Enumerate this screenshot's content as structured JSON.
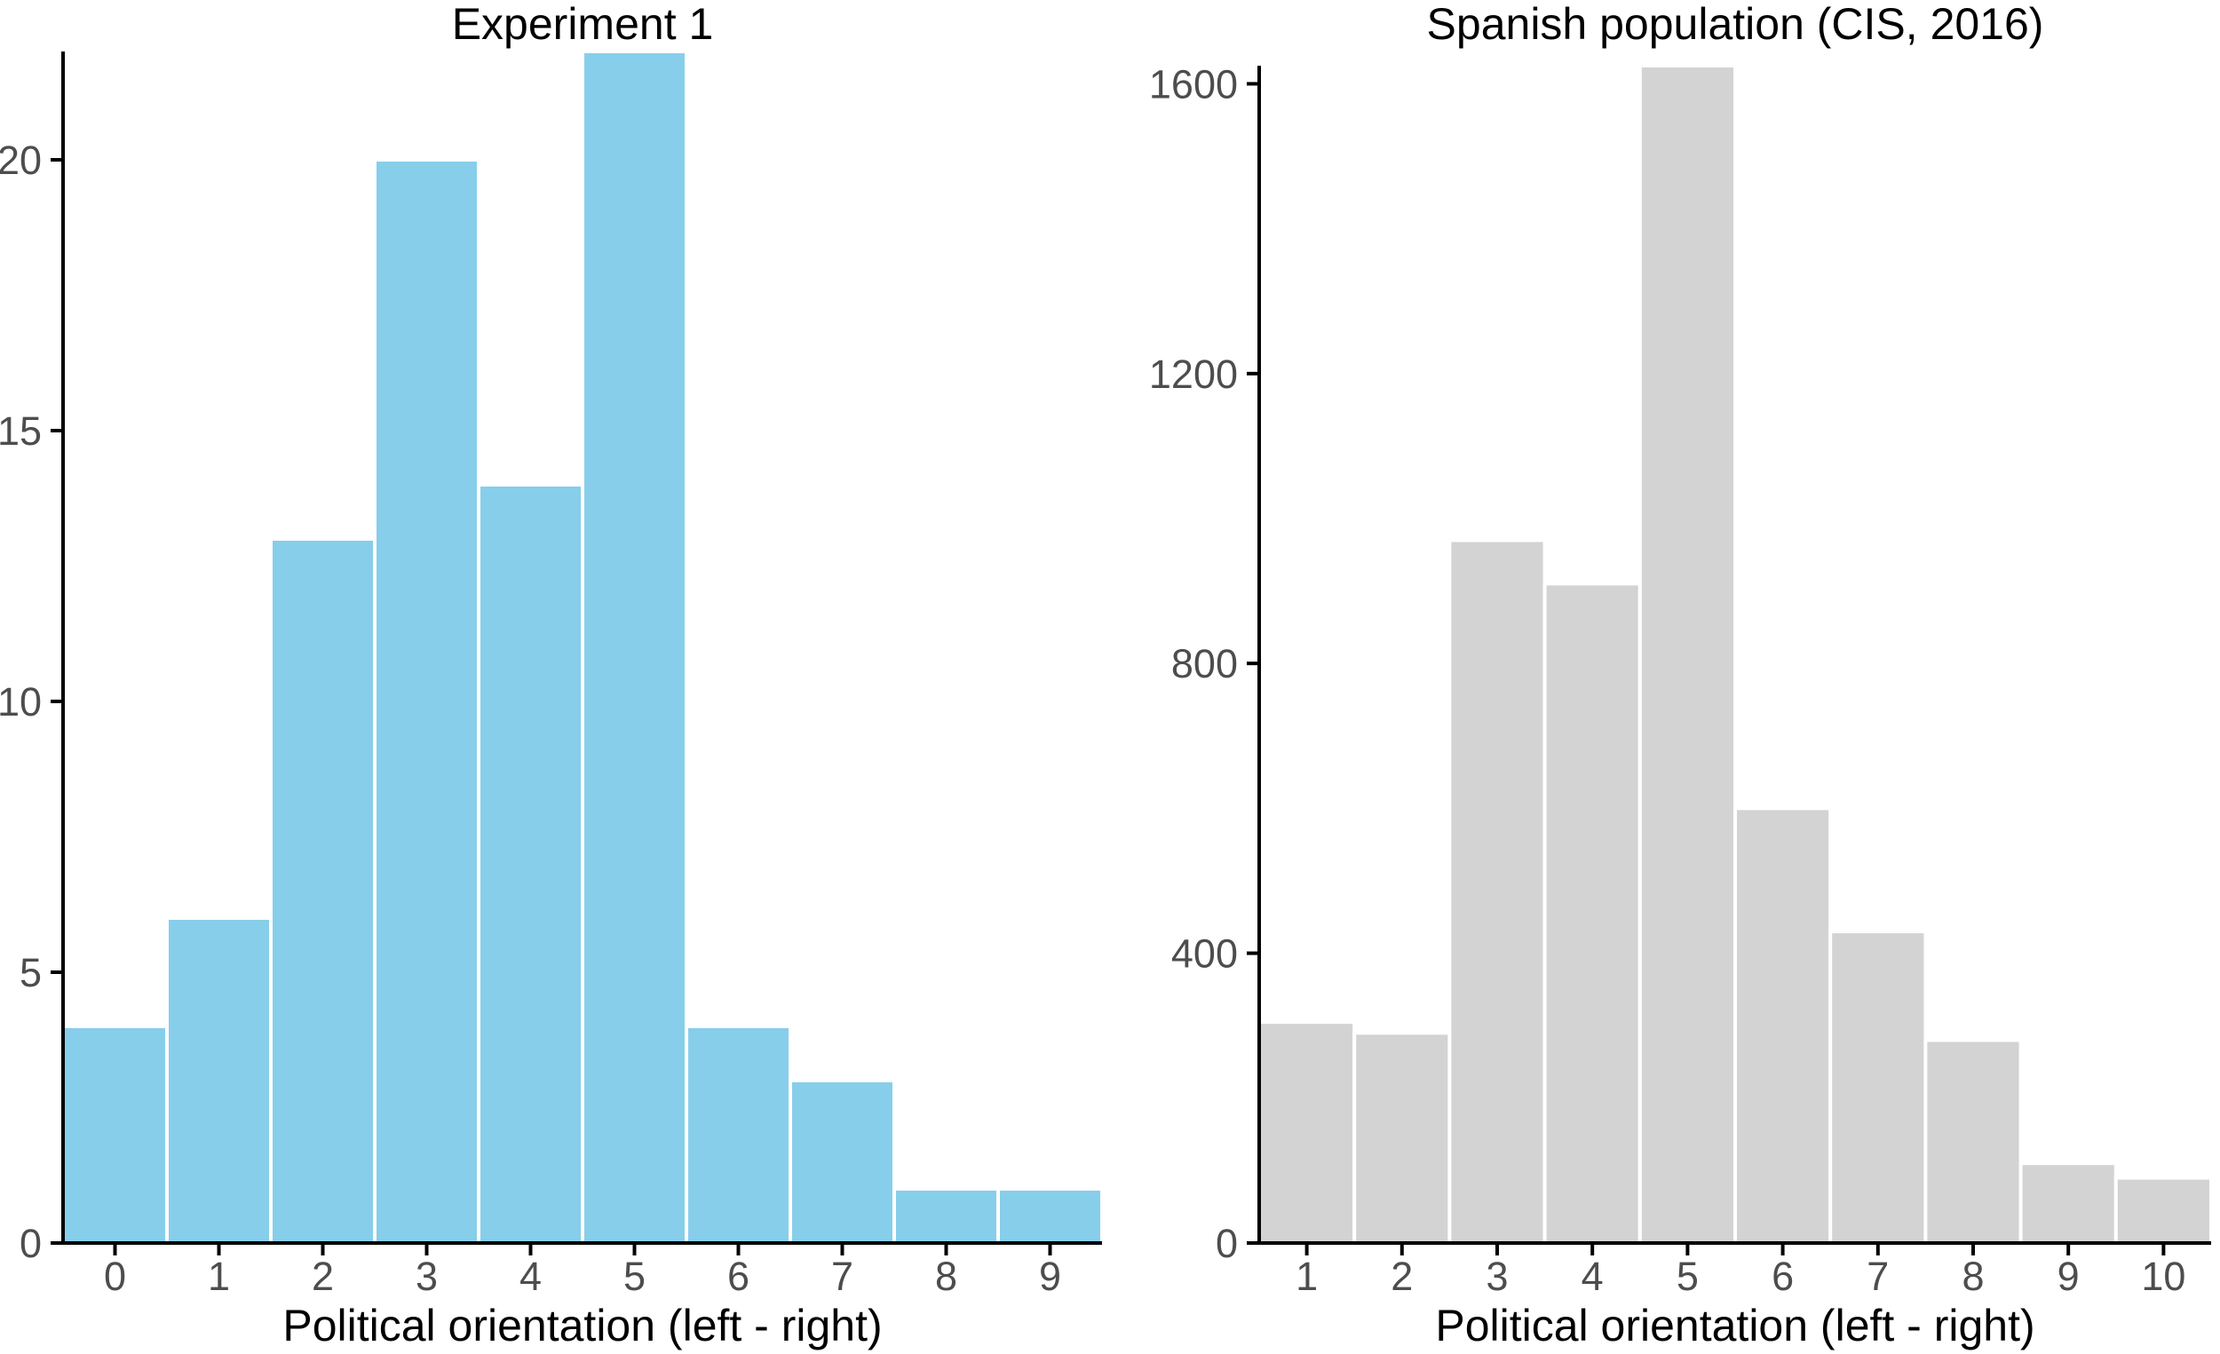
{
  "figure": {
    "background": "#FFFFFF"
  },
  "style": {
    "axis_color": "#000000",
    "tick_label_color": "#4D4D4D",
    "title_color": "#000000"
  },
  "chart_data": [
    {
      "type": "bar",
      "title": "Experiment 1",
      "xlabel": "Political orientation (left - right)",
      "ylabel": "",
      "categories": [
        "0",
        "1",
        "2",
        "3",
        "4",
        "5",
        "6",
        "7",
        "8",
        "9"
      ],
      "values": [
        4,
        6,
        13,
        20,
        14,
        22,
        4,
        3,
        1,
        1
      ],
      "y_ticks": [
        0,
        5,
        10,
        15,
        20
      ],
      "ylim": [
        0,
        22
      ],
      "bar_fill": "#87CEEB",
      "bar_stroke": "#FFFFFF",
      "grid": "off",
      "legend": "none"
    },
    {
      "type": "bar",
      "title": "Spanish population (CIS, 2016)",
      "xlabel": "Political orientation (left - right)",
      "ylabel": "",
      "categories": [
        "1",
        "2",
        "3",
        "4",
        "5",
        "6",
        "7",
        "8",
        "9",
        "10"
      ],
      "values": [
        305,
        290,
        970,
        910,
        1625,
        600,
        430,
        280,
        110,
        90
      ],
      "y_ticks": [
        0,
        400,
        800,
        1200,
        1600
      ],
      "ylim": [
        0,
        1625
      ],
      "bar_fill": "#D3D3D3",
      "bar_stroke": "#FFFFFF",
      "grid": "off",
      "legend": "none"
    }
  ]
}
